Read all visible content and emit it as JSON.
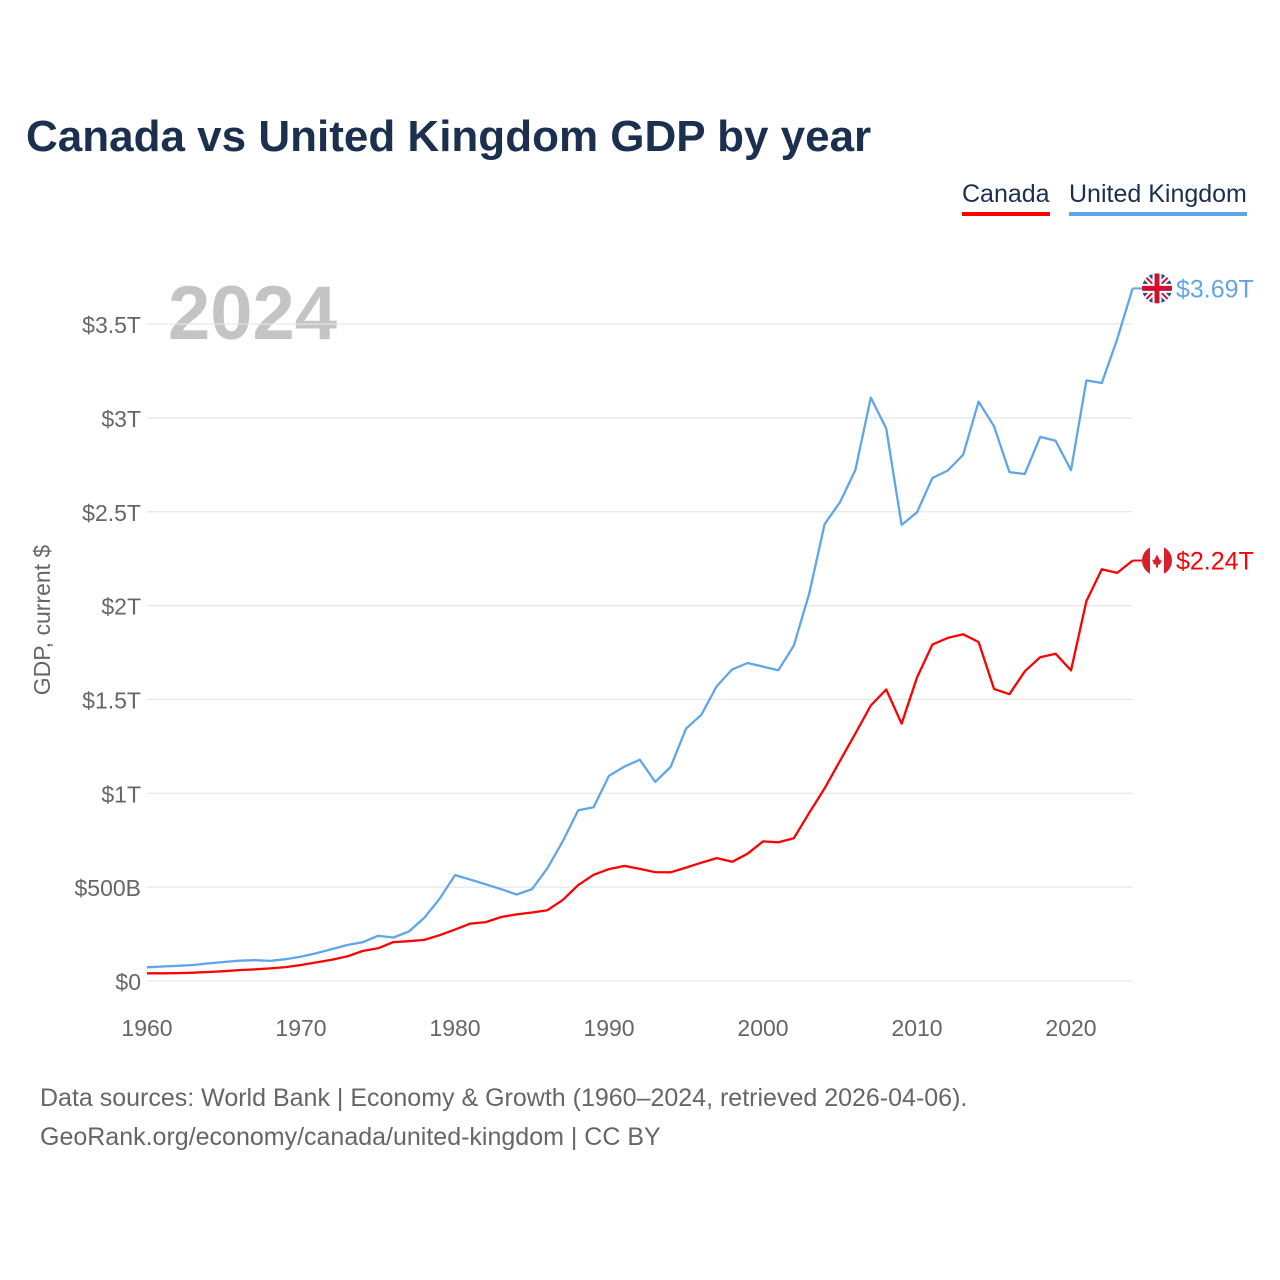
{
  "title": "Canada vs United Kingdom GDP by year",
  "legend": [
    {
      "label": "Canada",
      "color": "#ff0000"
    },
    {
      "label": "United Kingdom",
      "color": "#5fa6e8"
    }
  ],
  "footer": {
    "line1": "Data sources: World Bank | Economy & Growth (1960–2024, retrieved 2026-04-06).",
    "line2": "GeoRank.org/economy/canada/united-kingdom | CC BY"
  },
  "chart_data": {
    "type": "line",
    "title": "Canada vs United Kingdom GDP by year",
    "xlabel": "",
    "ylabel": "GDP, current $",
    "year_watermark": "2024",
    "xlim": [
      1960,
      2024
    ],
    "ylim": [
      0,
      3.7
    ],
    "y_unit": "trillion USD",
    "grid": true,
    "legend_position": "top-right",
    "x_ticks": [
      1960,
      1970,
      1980,
      1990,
      2000,
      2010,
      2020
    ],
    "x_tick_labels": [
      "1960",
      "1970",
      "1980",
      "1990",
      "2000",
      "2010",
      "2020"
    ],
    "y_ticks": [
      0,
      0.5,
      1,
      1.5,
      2,
      2.5,
      3,
      3.5
    ],
    "y_tick_labels": [
      "$0",
      "$500B",
      "$1T",
      "$1.5T",
      "$2T",
      "$2.5T",
      "$3T",
      "$3.5T"
    ],
    "x": [
      1960,
      1961,
      1962,
      1963,
      1964,
      1965,
      1966,
      1967,
      1968,
      1969,
      1970,
      1971,
      1972,
      1973,
      1974,
      1975,
      1976,
      1977,
      1978,
      1979,
      1980,
      1981,
      1982,
      1983,
      1984,
      1985,
      1986,
      1987,
      1988,
      1989,
      1990,
      1991,
      1992,
      1993,
      1994,
      1995,
      1996,
      1997,
      1998,
      1999,
      2000,
      2001,
      2002,
      2003,
      2004,
      2005,
      2006,
      2007,
      2008,
      2009,
      2010,
      2011,
      2012,
      2013,
      2014,
      2015,
      2016,
      2017,
      2018,
      2019,
      2020,
      2021,
      2022,
      2023,
      2024
    ],
    "series": [
      {
        "name": "United Kingdom",
        "color": "#5fa6e8",
        "end_label": "$3.69T",
        "flag": "uk-flag",
        "values": [
          0.073,
          0.077,
          0.081,
          0.085,
          0.094,
          0.101,
          0.108,
          0.111,
          0.107,
          0.116,
          0.13,
          0.148,
          0.17,
          0.192,
          0.206,
          0.241,
          0.232,
          0.263,
          0.336,
          0.438,
          0.564,
          0.54,
          0.515,
          0.489,
          0.461,
          0.489,
          0.601,
          0.745,
          0.91,
          0.926,
          1.093,
          1.142,
          1.179,
          1.061,
          1.14,
          1.344,
          1.419,
          1.571,
          1.66,
          1.694,
          1.675,
          1.656,
          1.787,
          2.064,
          2.434,
          2.551,
          2.723,
          3.108,
          2.944,
          2.43,
          2.497,
          2.68,
          2.72,
          2.804,
          3.087,
          2.956,
          2.711,
          2.701,
          2.899,
          2.878,
          2.722,
          3.2,
          3.186,
          3.42,
          3.69
        ]
      },
      {
        "name": "Canada",
        "color": "#ff0000",
        "end_label": "$2.24T",
        "flag": "canada-flag",
        "values": [
          0.041,
          0.041,
          0.042,
          0.044,
          0.048,
          0.052,
          0.058,
          0.062,
          0.067,
          0.074,
          0.085,
          0.099,
          0.113,
          0.131,
          0.16,
          0.174,
          0.207,
          0.212,
          0.219,
          0.244,
          0.274,
          0.306,
          0.314,
          0.341,
          0.355,
          0.365,
          0.377,
          0.432,
          0.511,
          0.566,
          0.596,
          0.613,
          0.597,
          0.58,
          0.579,
          0.604,
          0.63,
          0.655,
          0.635,
          0.678,
          0.744,
          0.739,
          0.76,
          0.896,
          1.026,
          1.173,
          1.319,
          1.468,
          1.553,
          1.371,
          1.617,
          1.793,
          1.828,
          1.847,
          1.806,
          1.556,
          1.528,
          1.65,
          1.725,
          1.744,
          1.655,
          2.024,
          2.194,
          2.174,
          2.24
        ]
      }
    ]
  }
}
